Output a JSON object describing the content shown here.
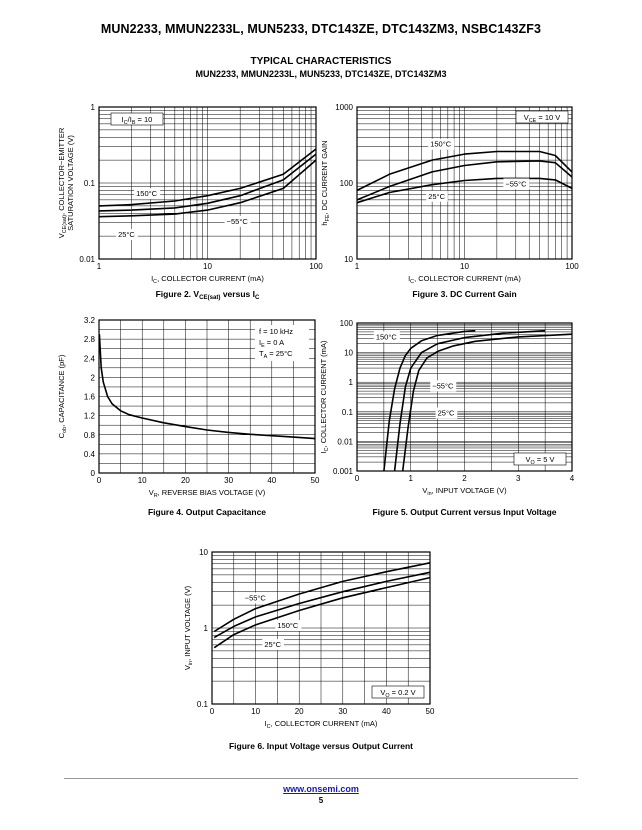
{
  "page": {
    "title": "MUN2233, MMUN2233L, MUN5233, DTC143ZE, DTC143ZM3, NSBC143ZF3",
    "section_title": "TYPICAL CHARACTERISTICS",
    "section_subtitle": "MUN2233, MMUN2233L, MUN5233, DTC143ZE, DTC143ZM3",
    "footer_link": "www.onsemi.com",
    "page_number": "5"
  },
  "chart_data": [
    {
      "id": "fig2",
      "type": "line",
      "caption_parts": [
        "Figure 2. V",
        "CE(sat)",
        " versus I",
        "C"
      ],
      "ylabel_parts": [
        "V",
        "CE(sat)",
        ", COLLECTOR−EMITTER"
      ],
      "ylabel2": "SATURATION VOLTAGE (V)",
      "xlabel_parts": [
        "I",
        "C",
        ", COLLECTOR CURRENT (mA)"
      ],
      "xscale": "log",
      "yscale": "log",
      "xlim": [
        1,
        100
      ],
      "ylim": [
        0.01,
        1
      ],
      "xticks": [
        1,
        10,
        100
      ],
      "xtick_labels": [
        "1",
        "10",
        "100"
      ],
      "yticks": [
        0.01,
        0.1,
        1
      ],
      "ytick_labels": [
        "0.01",
        "0.1",
        "1"
      ],
      "condition_parts": [
        "I",
        "C",
        "/I",
        "B",
        " = 10"
      ],
      "series": [
        {
          "name": "150°C",
          "x": [
            1,
            2,
            5,
            10,
            20,
            50,
            100
          ],
          "y": [
            0.05,
            0.052,
            0.058,
            0.068,
            0.085,
            0.13,
            0.28
          ]
        },
        {
          "name": "25°C",
          "x": [
            1,
            2,
            5,
            10,
            20,
            50,
            100
          ],
          "y": [
            0.043,
            0.044,
            0.047,
            0.054,
            0.068,
            0.11,
            0.24
          ]
        },
        {
          "name": "−55°C",
          "x": [
            1,
            2,
            5,
            10,
            20,
            50,
            100
          ],
          "y": [
            0.036,
            0.037,
            0.039,
            0.044,
            0.055,
            0.085,
            0.2
          ]
        }
      ],
      "annotations": [
        {
          "text": "150°C",
          "x": 2.2,
          "y": 0.067
        },
        {
          "text": "−55°C",
          "x": 15,
          "y": 0.029
        },
        {
          "text": "25°C",
          "x": 1.5,
          "y": 0.0195
        }
      ]
    },
    {
      "id": "fig3",
      "type": "line",
      "caption_parts": [
        "Figure 3. DC Current Gain"
      ],
      "ylabel_parts": [
        "h",
        "FE",
        ", DC CURRENT GAIN"
      ],
      "ylabel2": "",
      "xlabel_parts": [
        "I",
        "C",
        ", COLLECTOR CURRENT (mA)"
      ],
      "xscale": "log",
      "yscale": "log",
      "xlim": [
        1,
        100
      ],
      "ylim": [
        10,
        1000
      ],
      "xticks": [
        1,
        10,
        100
      ],
      "xtick_labels": [
        "1",
        "10",
        "100"
      ],
      "yticks": [
        10,
        100,
        1000
      ],
      "ytick_labels": [
        "10",
        "100",
        "1000"
      ],
      "condition_parts": [
        "V",
        "CE",
        " = 10 V"
      ],
      "series": [
        {
          "name": "150°C",
          "x": [
            1,
            2,
            5,
            10,
            20,
            50,
            70,
            100
          ],
          "y": [
            80,
            130,
            200,
            240,
            260,
            260,
            230,
            140
          ]
        },
        {
          "name": "25°C",
          "x": [
            1,
            2,
            5,
            10,
            20,
            50,
            70,
            100
          ],
          "y": [
            60,
            90,
            140,
            170,
            190,
            195,
            185,
            120
          ]
        },
        {
          "name": "−55°C",
          "x": [
            1,
            2,
            5,
            10,
            20,
            50,
            70,
            100
          ],
          "y": [
            55,
            75,
            95,
            108,
            115,
            115,
            110,
            85
          ]
        }
      ],
      "annotations": [
        {
          "text": "150°C",
          "x": 4.8,
          "y": 300
        },
        {
          "text": "−55°C",
          "x": 24,
          "y": 90
        },
        {
          "text": "25°C",
          "x": 4.6,
          "y": 62
        }
      ]
    },
    {
      "id": "fig4",
      "type": "line",
      "caption_parts": [
        "Figure 4. Output Capacitance"
      ],
      "ylabel_parts": [
        "C",
        "ob",
        ", CAPACITANCE (pF)"
      ],
      "ylabel2": "",
      "xlabel_parts": [
        "V",
        "R",
        ", REVERSE BIAS VOLTAGE (V)"
      ],
      "xscale": "linear",
      "yscale": "linear",
      "xlim": [
        0,
        50
      ],
      "ylim": [
        0,
        3.2
      ],
      "xticks": [
        0,
        10,
        20,
        30,
        40,
        50
      ],
      "xtick_labels": [
        "0",
        "10",
        "20",
        "30",
        "40",
        "50"
      ],
      "yticks": [
        0,
        0.4,
        0.8,
        1.2,
        1.6,
        2,
        2.4,
        2.8,
        3.2
      ],
      "ytick_labels": [
        "0",
        "0.4",
        "0.8",
        "1.2",
        "1.6",
        "2",
        "2.4",
        "2.8",
        "3.2"
      ],
      "conditions": [
        {
          "parts": [
            "f = 10 kHz"
          ]
        },
        {
          "parts": [
            "I",
            "E",
            " = 0 A"
          ]
        },
        {
          "parts": [
            "T",
            "A",
            " = 25°C"
          ]
        }
      ],
      "series": [
        {
          "name": "",
          "x": [
            0.1,
            0.5,
            1,
            2,
            3,
            5,
            7,
            10,
            15,
            20,
            25,
            30,
            35,
            40,
            45,
            50
          ],
          "y": [
            2.9,
            2.2,
            1.9,
            1.6,
            1.45,
            1.3,
            1.22,
            1.15,
            1.05,
            0.97,
            0.9,
            0.85,
            0.81,
            0.78,
            0.75,
            0.72
          ]
        }
      ],
      "annotations": []
    },
    {
      "id": "fig5",
      "type": "line",
      "caption_parts": [
        "Figure 5. Output Current versus Input Voltage"
      ],
      "ylabel_parts": [
        "I",
        "C",
        ", COLLECTOR CURRENT (mA)"
      ],
      "ylabel2": "",
      "xlabel_parts": [
        "V",
        "in",
        ", INPUT VOLTAGE (V)"
      ],
      "xscale": "linear",
      "yscale": "log",
      "xlim": [
        0,
        4
      ],
      "ylim": [
        0.001,
        100
      ],
      "xticks": [
        0,
        1,
        2,
        3,
        4
      ],
      "xtick_labels": [
        "0",
        "1",
        "2",
        "3",
        "4"
      ],
      "yticks": [
        0.001,
        0.01,
        0.1,
        1,
        10,
        100
      ],
      "ytick_labels": [
        "0.001",
        "0.01",
        "0.1",
        "1",
        "10",
        "100"
      ],
      "condition_parts": [
        "V",
        "O",
        " = 5 V"
      ],
      "series": [
        {
          "name": "150°C",
          "x": [
            0.5,
            0.6,
            0.7,
            0.8,
            0.9,
            1.0,
            1.2,
            1.5,
            2.0,
            2.2
          ],
          "y": [
            0.001,
            0.05,
            0.6,
            3,
            8,
            14,
            25,
            38,
            52,
            55
          ]
        },
        {
          "name": "−55°C",
          "x": [
            0.85,
            0.95,
            1.05,
            1.15,
            1.3,
            1.5,
            1.8,
            2.2,
            3.0,
            4.0
          ],
          "y": [
            0.001,
            0.03,
            0.5,
            2.5,
            6.5,
            11,
            17,
            24,
            34,
            42
          ]
        },
        {
          "name": "25°C",
          "x": [
            0.7,
            0.8,
            0.9,
            1.0,
            1.2,
            1.5,
            2.0,
            2.7,
            3.5
          ],
          "y": [
            0.001,
            0.04,
            0.7,
            3,
            10,
            20,
            32,
            45,
            55
          ]
        }
      ],
      "annotations": [
        {
          "text": "150°C",
          "x": 0.35,
          "y": 28
        },
        {
          "text": "−55°C",
          "x": 1.4,
          "y": 0.62
        },
        {
          "text": "25°C",
          "x": 1.5,
          "y": 0.075
        }
      ]
    },
    {
      "id": "fig6",
      "type": "line",
      "caption_parts": [
        "Figure 6. Input Voltage versus Output Current"
      ],
      "ylabel_parts": [
        "V",
        "in",
        ", INPUT VOLTAGE (V)"
      ],
      "ylabel2": "",
      "xlabel_parts": [
        "I",
        "C",
        ", COLLECTOR CURRENT (mA)"
      ],
      "xscale": "linear",
      "yscale": "log",
      "xlim": [
        0,
        50
      ],
      "ylim": [
        0.1,
        10
      ],
      "xticks": [
        0,
        10,
        20,
        30,
        40,
        50
      ],
      "xtick_labels": [
        "0",
        "10",
        "20",
        "30",
        "40",
        "50"
      ],
      "yticks": [
        0.1,
        1,
        10
      ],
      "ytick_labels": [
        "0.1",
        "1",
        "10"
      ],
      "condition_parts": [
        "V",
        "O",
        " = 0.2 V"
      ],
      "series": [
        {
          "name": "−55°C",
          "x": [
            0.5,
            5,
            10,
            20,
            30,
            40,
            50
          ],
          "y": [
            0.9,
            1.3,
            1.8,
            2.8,
            4.1,
            5.5,
            7.2
          ]
        },
        {
          "name": "25°C",
          "x": [
            0.5,
            5,
            10,
            20,
            30,
            40,
            50
          ],
          "y": [
            0.75,
            1.05,
            1.4,
            2.1,
            3.0,
            4.1,
            5.4
          ]
        },
        {
          "name": "150°C",
          "x": [
            0.5,
            5,
            10,
            20,
            30,
            40,
            50
          ],
          "y": [
            0.55,
            0.82,
            1.1,
            1.7,
            2.5,
            3.4,
            4.6
          ]
        }
      ],
      "annotations": [
        {
          "text": "−55°C",
          "x": 7.5,
          "y": 2.3
        },
        {
          "text": "150°C",
          "x": 15,
          "y": 1.0
        },
        {
          "text": "25°C",
          "x": 12,
          "y": 0.56
        }
      ]
    }
  ]
}
